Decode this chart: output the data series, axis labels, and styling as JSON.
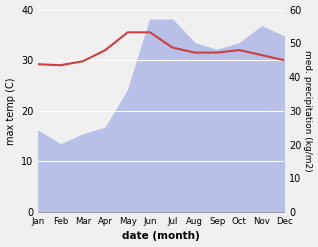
{
  "months": [
    "Jan",
    "Feb",
    "Mar",
    "Apr",
    "May",
    "Jun",
    "Jul",
    "Aug",
    "Sep",
    "Oct",
    "Nov",
    "Dec"
  ],
  "max_temp": [
    29.2,
    29.0,
    29.8,
    32.0,
    35.5,
    35.5,
    32.5,
    31.5,
    31.5,
    32.0,
    31.0,
    30.0
  ],
  "precipitation": [
    24.0,
    20.0,
    23.0,
    25.0,
    36.0,
    57.0,
    57.0,
    50.0,
    48.0,
    50.0,
    55.0,
    52.0
  ],
  "temp_color": "#cc4040",
  "precip_fill_color": "#b8c0e8",
  "temp_ylim": [
    0,
    40
  ],
  "precip_ylim": [
    0,
    60
  ],
  "xlabel": "date (month)",
  "ylabel_left": "max temp (C)",
  "ylabel_right": "med. precipitation (kg/m2)",
  "bg_color": "#f0f0f0",
  "yticks_left": [
    0,
    10,
    20,
    30,
    40
  ],
  "yticks_right": [
    0,
    10,
    20,
    30,
    40,
    50,
    60
  ]
}
